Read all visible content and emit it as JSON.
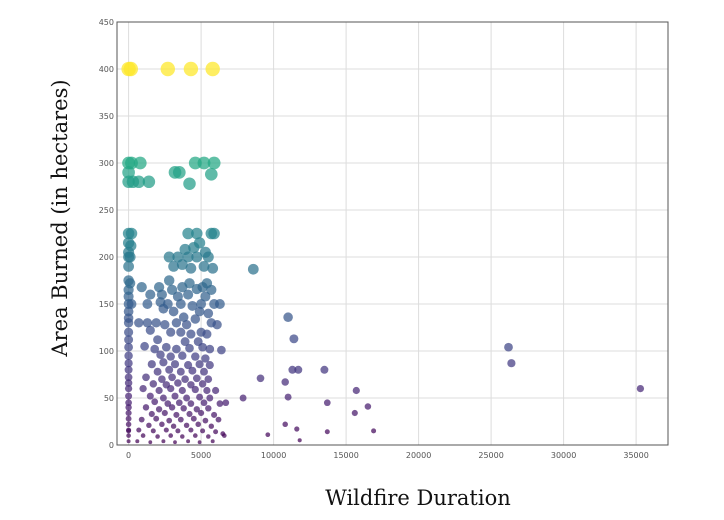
{
  "chart_data": {
    "type": "scatter",
    "title": "",
    "xlabel": "Wildfire Duration",
    "ylabel": "Area Burned (in hectares)",
    "xlim": [
      -800,
      37200
    ],
    "ylim": [
      0,
      450
    ],
    "xticks": [
      0,
      5000,
      10000,
      15000,
      20000,
      25000,
      30000,
      35000
    ],
    "yticks": [
      0,
      50,
      100,
      150,
      200,
      250,
      300,
      350,
      400,
      450
    ],
    "grid": true,
    "legend": "none",
    "color_map": "viridis",
    "color_encodes": "y",
    "size_encodes": "y",
    "points": [
      {
        "x": 0,
        "y": 400
      },
      {
        "x": 150,
        "y": 400
      },
      {
        "x": 2700,
        "y": 400
      },
      {
        "x": 4300,
        "y": 400
      },
      {
        "x": 5800,
        "y": 400
      },
      {
        "x": 0,
        "y": 300
      },
      {
        "x": 200,
        "y": 300
      },
      {
        "x": 800,
        "y": 300
      },
      {
        "x": 4600,
        "y": 300
      },
      {
        "x": 5200,
        "y": 300
      },
      {
        "x": 5900,
        "y": 300
      },
      {
        "x": 0,
        "y": 290
      },
      {
        "x": 3200,
        "y": 290
      },
      {
        "x": 3500,
        "y": 290
      },
      {
        "x": 5700,
        "y": 288
      },
      {
        "x": 0,
        "y": 280
      },
      {
        "x": 300,
        "y": 280
      },
      {
        "x": 700,
        "y": 280
      },
      {
        "x": 1400,
        "y": 280
      },
      {
        "x": 4200,
        "y": 278
      },
      {
        "x": 0,
        "y": 225
      },
      {
        "x": 200,
        "y": 225
      },
      {
        "x": 4100,
        "y": 225
      },
      {
        "x": 4700,
        "y": 225
      },
      {
        "x": 5700,
        "y": 225
      },
      {
        "x": 5900,
        "y": 225
      },
      {
        "x": 0,
        "y": 215
      },
      {
        "x": 150,
        "y": 212
      },
      {
        "x": 4900,
        "y": 215
      },
      {
        "x": 4500,
        "y": 210
      },
      {
        "x": 0,
        "y": 205
      },
      {
        "x": 3900,
        "y": 208
      },
      {
        "x": 5300,
        "y": 205
      },
      {
        "x": 0,
        "y": 200
      },
      {
        "x": 100,
        "y": 200
      },
      {
        "x": 2800,
        "y": 200
      },
      {
        "x": 3400,
        "y": 200
      },
      {
        "x": 4100,
        "y": 200
      },
      {
        "x": 4700,
        "y": 200
      },
      {
        "x": 5500,
        "y": 200
      },
      {
        "x": 0,
        "y": 190
      },
      {
        "x": 3100,
        "y": 190
      },
      {
        "x": 3700,
        "y": 192
      },
      {
        "x": 4300,
        "y": 188
      },
      {
        "x": 5200,
        "y": 190
      },
      {
        "x": 5800,
        "y": 188
      },
      {
        "x": 8600,
        "y": 187
      },
      {
        "x": 0,
        "y": 175
      },
      {
        "x": 100,
        "y": 172
      },
      {
        "x": 2800,
        "y": 175
      },
      {
        "x": 4200,
        "y": 172
      },
      {
        "x": 5400,
        "y": 172
      },
      {
        "x": 0,
        "y": 165
      },
      {
        "x": 900,
        "y": 168
      },
      {
        "x": 2100,
        "y": 168
      },
      {
        "x": 3000,
        "y": 165
      },
      {
        "x": 3700,
        "y": 168
      },
      {
        "x": 4700,
        "y": 166
      },
      {
        "x": 5100,
        "y": 168
      },
      {
        "x": 5700,
        "y": 165
      },
      {
        "x": 0,
        "y": 158
      },
      {
        "x": 1500,
        "y": 160
      },
      {
        "x": 2300,
        "y": 160
      },
      {
        "x": 3400,
        "y": 158
      },
      {
        "x": 4100,
        "y": 160
      },
      {
        "x": 5300,
        "y": 158
      },
      {
        "x": 0,
        "y": 150
      },
      {
        "x": 200,
        "y": 150
      },
      {
        "x": 1300,
        "y": 150
      },
      {
        "x": 2200,
        "y": 152
      },
      {
        "x": 2700,
        "y": 150
      },
      {
        "x": 3600,
        "y": 150
      },
      {
        "x": 4400,
        "y": 148
      },
      {
        "x": 5000,
        "y": 150
      },
      {
        "x": 5900,
        "y": 150
      },
      {
        "x": 6300,
        "y": 150
      },
      {
        "x": 0,
        "y": 142
      },
      {
        "x": 2400,
        "y": 145
      },
      {
        "x": 3100,
        "y": 142
      },
      {
        "x": 4900,
        "y": 142
      },
      {
        "x": 5500,
        "y": 140
      },
      {
        "x": 0,
        "y": 135
      },
      {
        "x": 11000,
        "y": 136
      },
      {
        "x": 3800,
        "y": 136
      },
      {
        "x": 4600,
        "y": 134
      },
      {
        "x": 0,
        "y": 130
      },
      {
        "x": 700,
        "y": 130
      },
      {
        "x": 1300,
        "y": 130
      },
      {
        "x": 1900,
        "y": 130
      },
      {
        "x": 2500,
        "y": 128
      },
      {
        "x": 3300,
        "y": 130
      },
      {
        "x": 4000,
        "y": 128
      },
      {
        "x": 5700,
        "y": 130
      },
      {
        "x": 6100,
        "y": 128
      },
      {
        "x": 0,
        "y": 120
      },
      {
        "x": 1500,
        "y": 122
      },
      {
        "x": 2900,
        "y": 120
      },
      {
        "x": 3600,
        "y": 120
      },
      {
        "x": 4300,
        "y": 118
      },
      {
        "x": 5000,
        "y": 120
      },
      {
        "x": 5400,
        "y": 118
      },
      {
        "x": 0,
        "y": 112
      },
      {
        "x": 11400,
        "y": 113
      },
      {
        "x": 2000,
        "y": 112
      },
      {
        "x": 3900,
        "y": 110
      },
      {
        "x": 4800,
        "y": 110
      },
      {
        "x": 0,
        "y": 104
      },
      {
        "x": 26200,
        "y": 104
      },
      {
        "x": 1100,
        "y": 105
      },
      {
        "x": 1800,
        "y": 102
      },
      {
        "x": 2600,
        "y": 104
      },
      {
        "x": 3300,
        "y": 102
      },
      {
        "x": 4200,
        "y": 103
      },
      {
        "x": 5100,
        "y": 104
      },
      {
        "x": 5600,
        "y": 102
      },
      {
        "x": 6400,
        "y": 101
      },
      {
        "x": 0,
        "y": 95
      },
      {
        "x": 2200,
        "y": 96
      },
      {
        "x": 2900,
        "y": 94
      },
      {
        "x": 3700,
        "y": 95
      },
      {
        "x": 4600,
        "y": 94
      },
      {
        "x": 5300,
        "y": 92
      },
      {
        "x": 0,
        "y": 87
      },
      {
        "x": 26400,
        "y": 87
      },
      {
        "x": 1600,
        "y": 86
      },
      {
        "x": 2400,
        "y": 88
      },
      {
        "x": 3200,
        "y": 86
      },
      {
        "x": 4100,
        "y": 85
      },
      {
        "x": 4900,
        "y": 86
      },
      {
        "x": 5600,
        "y": 85
      },
      {
        "x": 0,
        "y": 80
      },
      {
        "x": 11300,
        "y": 80
      },
      {
        "x": 11700,
        "y": 80
      },
      {
        "x": 13500,
        "y": 80
      },
      {
        "x": 2000,
        "y": 78
      },
      {
        "x": 2800,
        "y": 80
      },
      {
        "x": 3600,
        "y": 78
      },
      {
        "x": 4400,
        "y": 79
      },
      {
        "x": 5200,
        "y": 78
      },
      {
        "x": 0,
        "y": 72
      },
      {
        "x": 9100,
        "y": 71
      },
      {
        "x": 1200,
        "y": 72
      },
      {
        "x": 2300,
        "y": 70
      },
      {
        "x": 3000,
        "y": 72
      },
      {
        "x": 3900,
        "y": 70
      },
      {
        "x": 4700,
        "y": 71
      },
      {
        "x": 5500,
        "y": 70
      },
      {
        "x": 0,
        "y": 66
      },
      {
        "x": 10800,
        "y": 67
      },
      {
        "x": 1700,
        "y": 65
      },
      {
        "x": 2600,
        "y": 64
      },
      {
        "x": 3400,
        "y": 66
      },
      {
        "x": 4300,
        "y": 64
      },
      {
        "x": 5100,
        "y": 65
      },
      {
        "x": 0,
        "y": 60
      },
      {
        "x": 35300,
        "y": 60
      },
      {
        "x": 15700,
        "y": 58
      },
      {
        "x": 1000,
        "y": 60
      },
      {
        "x": 2100,
        "y": 58
      },
      {
        "x": 2900,
        "y": 60
      },
      {
        "x": 3700,
        "y": 58
      },
      {
        "x": 4600,
        "y": 59
      },
      {
        "x": 5400,
        "y": 58
      },
      {
        "x": 6000,
        "y": 58
      },
      {
        "x": 0,
        "y": 52
      },
      {
        "x": 11000,
        "y": 51
      },
      {
        "x": 7900,
        "y": 50
      },
      {
        "x": 1500,
        "y": 52
      },
      {
        "x": 2400,
        "y": 50
      },
      {
        "x": 3200,
        "y": 52
      },
      {
        "x": 4000,
        "y": 50
      },
      {
        "x": 4900,
        "y": 51
      },
      {
        "x": 5600,
        "y": 50
      },
      {
        "x": 0,
        "y": 45
      },
      {
        "x": 13700,
        "y": 45
      },
      {
        "x": 6700,
        "y": 45
      },
      {
        "x": 1800,
        "y": 46
      },
      {
        "x": 2700,
        "y": 44
      },
      {
        "x": 3500,
        "y": 45
      },
      {
        "x": 4300,
        "y": 44
      },
      {
        "x": 5200,
        "y": 45
      },
      {
        "x": 6300,
        "y": 44
      },
      {
        "x": 0,
        "y": 40
      },
      {
        "x": 16500,
        "y": 41
      },
      {
        "x": 1200,
        "y": 40
      },
      {
        "x": 2100,
        "y": 38
      },
      {
        "x": 3000,
        "y": 40
      },
      {
        "x": 3800,
        "y": 39
      },
      {
        "x": 4700,
        "y": 38
      },
      {
        "x": 5500,
        "y": 39
      },
      {
        "x": 0,
        "y": 34
      },
      {
        "x": 15600,
        "y": 34
      },
      {
        "x": 1600,
        "y": 33
      },
      {
        "x": 2500,
        "y": 34
      },
      {
        "x": 3300,
        "y": 32
      },
      {
        "x": 4200,
        "y": 33
      },
      {
        "x": 5000,
        "y": 34
      },
      {
        "x": 5900,
        "y": 32
      },
      {
        "x": 0,
        "y": 28
      },
      {
        "x": 900,
        "y": 27
      },
      {
        "x": 1900,
        "y": 28
      },
      {
        "x": 2800,
        "y": 26
      },
      {
        "x": 3600,
        "y": 27
      },
      {
        "x": 4500,
        "y": 28
      },
      {
        "x": 5300,
        "y": 26
      },
      {
        "x": 6200,
        "y": 27
      },
      {
        "x": 0,
        "y": 22
      },
      {
        "x": 10800,
        "y": 22
      },
      {
        "x": 1400,
        "y": 21
      },
      {
        "x": 2300,
        "y": 22
      },
      {
        "x": 3100,
        "y": 20
      },
      {
        "x": 4000,
        "y": 21
      },
      {
        "x": 4800,
        "y": 22
      },
      {
        "x": 5700,
        "y": 20
      },
      {
        "x": 0,
        "y": 16
      },
      {
        "x": 11600,
        "y": 17
      },
      {
        "x": 700,
        "y": 16
      },
      {
        "x": 1700,
        "y": 15
      },
      {
        "x": 2600,
        "y": 16
      },
      {
        "x": 3400,
        "y": 15
      },
      {
        "x": 4300,
        "y": 16
      },
      {
        "x": 5100,
        "y": 15
      },
      {
        "x": 6000,
        "y": 14
      },
      {
        "x": 0,
        "y": 15
      },
      {
        "x": 16900,
        "y": 15
      },
      {
        "x": 13700,
        "y": 14
      },
      {
        "x": 6500,
        "y": 12
      },
      {
        "x": 0,
        "y": 10
      },
      {
        "x": 9600,
        "y": 11
      },
      {
        "x": 1000,
        "y": 10
      },
      {
        "x": 2000,
        "y": 9
      },
      {
        "x": 2900,
        "y": 10
      },
      {
        "x": 3700,
        "y": 9
      },
      {
        "x": 4600,
        "y": 10
      },
      {
        "x": 5500,
        "y": 9
      },
      {
        "x": 6600,
        "y": 10
      },
      {
        "x": 0,
        "y": 4
      },
      {
        "x": 11800,
        "y": 5
      },
      {
        "x": 600,
        "y": 4
      },
      {
        "x": 1500,
        "y": 3
      },
      {
        "x": 2400,
        "y": 4
      },
      {
        "x": 3200,
        "y": 3
      },
      {
        "x": 4100,
        "y": 4
      },
      {
        "x": 4900,
        "y": 3
      },
      {
        "x": 5800,
        "y": 4
      }
    ]
  }
}
